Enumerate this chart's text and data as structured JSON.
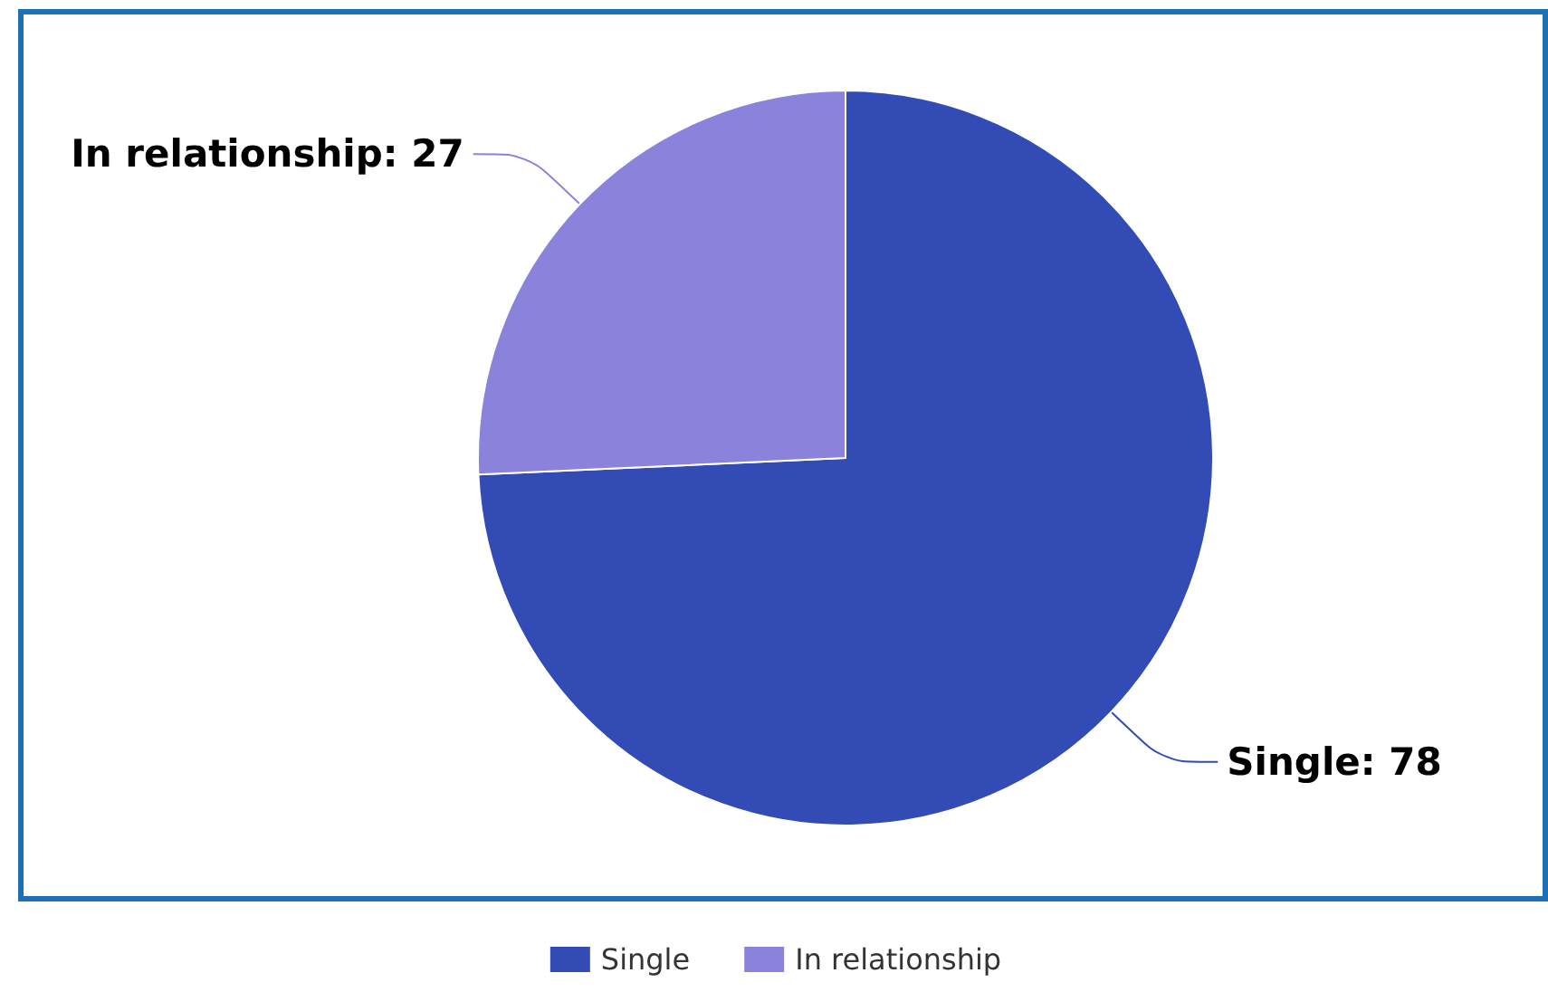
{
  "chart_data": {
    "type": "pie",
    "categories": [
      "Single",
      "In relationship"
    ],
    "values": [
      78,
      27
    ],
    "colors": [
      "#324bb5",
      "#8b82db"
    ],
    "value_labels": [
      "Single: 78",
      "In relationship: 27"
    ],
    "legend": "bottom"
  }
}
